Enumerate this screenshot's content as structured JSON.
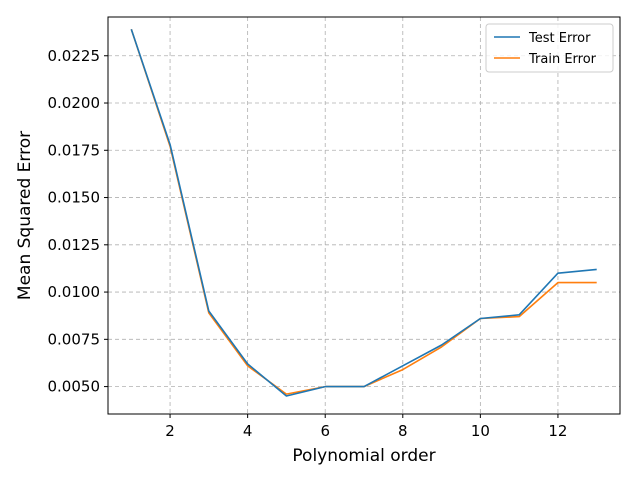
{
  "chart_data": {
    "type": "line",
    "title": "",
    "xlabel": "Polynomial order",
    "ylabel": "Mean Squared Error",
    "xlim": [
      0.4,
      13.6
    ],
    "ylim": [
      0.00355,
      0.02455
    ],
    "xticks": [
      2,
      4,
      6,
      8,
      10,
      12
    ],
    "yticks": [
      0.005,
      0.0075,
      0.01,
      0.0125,
      0.015,
      0.0175,
      0.02,
      0.0225
    ],
    "xtick_labels": [
      "2",
      "4",
      "6",
      "8",
      "10",
      "12"
    ],
    "ytick_labels": [
      "0.0050",
      "0.0075",
      "0.0100",
      "0.0125",
      "0.0150",
      "0.0175",
      "0.0200",
      "0.0225"
    ],
    "grid": true,
    "legend_position": "top-right",
    "x": [
      1,
      2,
      3,
      4,
      5,
      6,
      7,
      8,
      9,
      10,
      11,
      12,
      13
    ],
    "series": [
      {
        "name": "Test Error",
        "color": "#1f77b4",
        "values": [
          0.0239,
          0.0178,
          0.009,
          0.0062,
          0.0045,
          0.005,
          0.005,
          0.0061,
          0.0072,
          0.0086,
          0.0088,
          0.011,
          0.0112
        ]
      },
      {
        "name": "Train Error",
        "color": "#ff7f0e",
        "values": [
          0.0239,
          0.0177,
          0.0089,
          0.0061,
          0.0046,
          0.005,
          0.005,
          0.0059,
          0.0071,
          0.0086,
          0.0087,
          0.0105,
          0.0105
        ]
      }
    ]
  }
}
